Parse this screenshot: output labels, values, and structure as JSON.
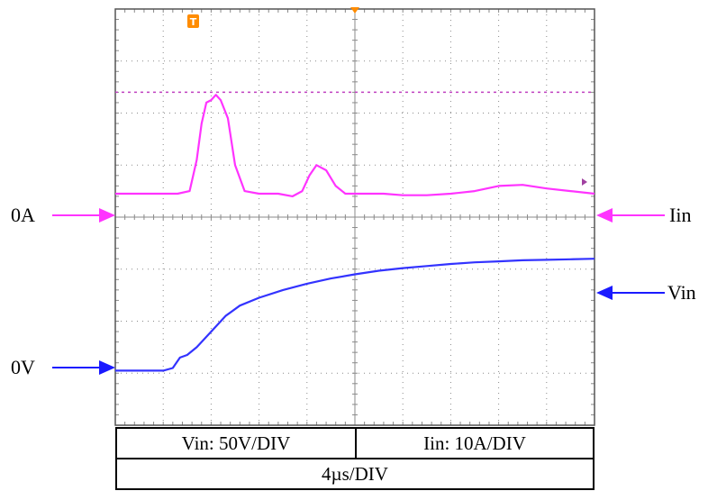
{
  "chart_data": {
    "type": "line",
    "x_unit_per_div": "4µs/DIV",
    "divisions": {
      "x": 10,
      "y": 8
    },
    "grid": true,
    "series": [
      {
        "name": "Iin",
        "color": "#ff33ff",
        "scale": "Iin: 10A/DIV",
        "zero_marker_label": "0A",
        "x_div": [
          0,
          0.5,
          1.0,
          1.3,
          1.55,
          1.7,
          1.8,
          1.9,
          2.0,
          2.1,
          2.2,
          2.35,
          2.5,
          2.7,
          3.0,
          3.4,
          3.7,
          3.9,
          4.05,
          4.2,
          4.4,
          4.6,
          4.8,
          5.0,
          5.3,
          5.6,
          6.0,
          6.5,
          7.0,
          7.5,
          8.0,
          8.5,
          9.0,
          9.5,
          10.0
        ],
        "y_div": [
          4.45,
          4.45,
          4.45,
          4.45,
          4.5,
          5.1,
          5.8,
          6.2,
          6.25,
          6.35,
          6.25,
          5.9,
          5.0,
          4.5,
          4.45,
          4.45,
          4.4,
          4.5,
          4.8,
          5.0,
          4.9,
          4.6,
          4.45,
          4.45,
          4.45,
          4.45,
          4.42,
          4.42,
          4.45,
          4.5,
          4.6,
          4.62,
          4.55,
          4.5,
          4.45
        ]
      },
      {
        "name": "Vin",
        "color": "#3333ff",
        "scale": "Vin: 50V/DIV",
        "zero_marker_label": "0V",
        "x_div": [
          0,
          0.5,
          1.0,
          1.2,
          1.35,
          1.5,
          1.7,
          2.0,
          2.3,
          2.6,
          3.0,
          3.5,
          4.0,
          4.5,
          5.0,
          5.5,
          6.0,
          6.5,
          7.0,
          7.5,
          8.0,
          8.5,
          9.0,
          9.5,
          10.0
        ],
        "y_div": [
          1.05,
          1.05,
          1.05,
          1.1,
          1.3,
          1.35,
          1.5,
          1.8,
          2.1,
          2.3,
          2.45,
          2.6,
          2.72,
          2.82,
          2.9,
          2.97,
          3.02,
          3.06,
          3.1,
          3.13,
          3.15,
          3.17,
          3.18,
          3.19,
          3.2
        ]
      }
    ],
    "trigger_level_y_div": 6.4,
    "markers": {
      "trigger_symbol": "T"
    }
  },
  "labels": {
    "iin_zero": "0A",
    "iin_name": "Iin",
    "vin_zero": "0V",
    "vin_name": "Vin",
    "vin_scale": "Vin: 50V/DIV",
    "iin_scale": "Iin: 10A/DIV",
    "time_scale": "4µs/DIV"
  },
  "colors": {
    "current_trace": "#ff33ff",
    "voltage_trace": "#3333ff",
    "trigger_marker": "#ff8c00",
    "grid": "#8a8a8a"
  }
}
